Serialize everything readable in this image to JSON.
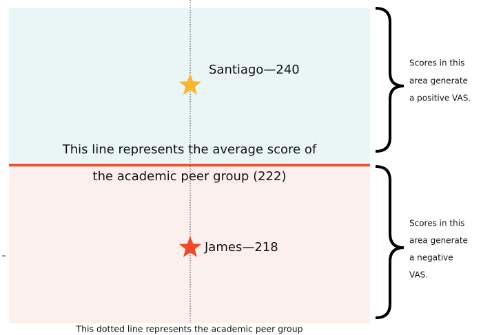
{
  "points": [
    {
      "label": "Santiago—240"
    },
    {
      "label": "James—218"
    }
  ],
  "average_line": {
    "lines": [
      "This line represents the average score of",
      "the academic peer group (222)"
    ]
  },
  "dotted_line": {
    "caption": "This dotted line represents the academic peer group"
  },
  "upper_note": {
    "lines": [
      "Scores in this",
      "area generate",
      "a positive VAS."
    ]
  },
  "lower_note": {
    "lines": [
      "Scores in this",
      "area generate",
      "a negative",
      "VAS."
    ]
  }
}
